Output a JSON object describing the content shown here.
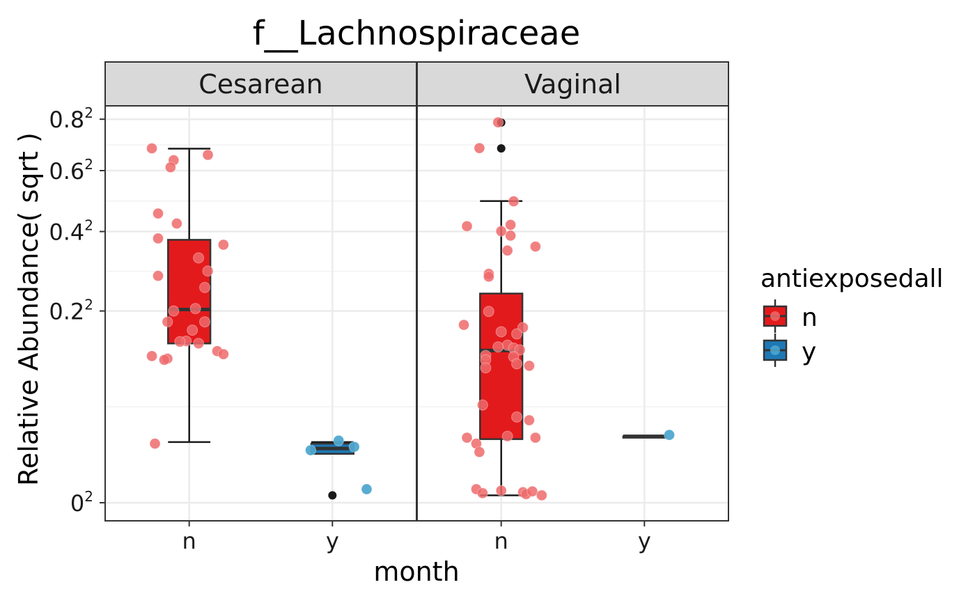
{
  "chart_data": {
    "type": "box",
    "title": "f__Lachnospiraceae",
    "xlabel": "month",
    "ylabel": "Relative Abundance( sqrt )",
    "y_scale": "sqrt",
    "ylim": [
      0,
      0.85
    ],
    "y_ticks": [
      0,
      0.2,
      0.4,
      0.6,
      0.8
    ],
    "y_tick_labels": [
      {
        "base": "0",
        "sup": "2"
      },
      {
        "base": "0.2",
        "sup": "2"
      },
      {
        "base": "0.4",
        "sup": "2"
      },
      {
        "base": "0.6",
        "sup": "2"
      },
      {
        "base": "0.8",
        "sup": "2"
      }
    ],
    "categories": [
      "n",
      "y"
    ],
    "grid": true,
    "legend": {
      "title": "antiexposedall",
      "position": "right",
      "entries": [
        {
          "label": "n",
          "fill": "#E31A1C",
          "point": "#EF6A6B"
        },
        {
          "label": "y",
          "fill": "#1F78B4",
          "point": "#4FA8D0"
        }
      ]
    },
    "colors": {
      "n_box": "#E31A1C",
      "n_point": "#EF6A6B",
      "y_point": "#4FA8D0",
      "outlier": "#1a1a1a"
    },
    "facets": [
      {
        "name": "Cesarean",
        "boxes": [
          {
            "category": "n",
            "min": 0.02,
            "q1": 0.138,
            "median": 0.203,
            "q3": 0.376,
            "max": 0.682,
            "outliers": []
          },
          {
            "category": "y",
            "min": 0.013,
            "q1": 0.013,
            "median": 0.016,
            "q3": 0.019,
            "max": 0.02,
            "outliers": [
              0.0003
            ]
          }
        ],
        "points": [
          {
            "category": "n",
            "jitter": -0.12,
            "value": 0.683
          },
          {
            "category": "n",
            "jitter": 0.06,
            "value": 0.658
          },
          {
            "category": "n",
            "jitter": -0.05,
            "value": 0.638
          },
          {
            "category": "n",
            "jitter": -0.06,
            "value": 0.612
          },
          {
            "category": "n",
            "jitter": -0.1,
            "value": 0.455
          },
          {
            "category": "n",
            "jitter": -0.04,
            "value": 0.424
          },
          {
            "category": "n",
            "jitter": -0.1,
            "value": 0.38
          },
          {
            "category": "n",
            "jitter": 0.11,
            "value": 0.362
          },
          {
            "category": "n",
            "jitter": 0.03,
            "value": 0.326
          },
          {
            "category": "n",
            "jitter": 0.06,
            "value": 0.292
          },
          {
            "category": "n",
            "jitter": -0.1,
            "value": 0.28
          },
          {
            "category": "n",
            "jitter": 0.05,
            "value": 0.252
          },
          {
            "category": "n",
            "jitter": 0.02,
            "value": 0.205
          },
          {
            "category": "n",
            "jitter": -0.05,
            "value": 0.2
          },
          {
            "category": "n",
            "jitter": -0.07,
            "value": 0.178
          },
          {
            "category": "n",
            "jitter": 0.05,
            "value": 0.178
          },
          {
            "category": "n",
            "jitter": 0.01,
            "value": 0.162
          },
          {
            "category": "n",
            "jitter": -0.01,
            "value": 0.142
          },
          {
            "category": "n",
            "jitter": -0.03,
            "value": 0.141
          },
          {
            "category": "n",
            "jitter": 0.03,
            "value": 0.138
          },
          {
            "category": "n",
            "jitter": 0.09,
            "value": 0.125
          },
          {
            "category": "n",
            "jitter": 0.11,
            "value": 0.12
          },
          {
            "category": "n",
            "jitter": -0.12,
            "value": 0.117
          },
          {
            "category": "n",
            "jitter": -0.07,
            "value": 0.113
          },
          {
            "category": "n",
            "jitter": -0.08,
            "value": 0.111
          },
          {
            "category": "n",
            "jitter": -0.11,
            "value": 0.019
          },
          {
            "category": "y",
            "jitter": -0.07,
            "value": 0.015
          },
          {
            "category": "y",
            "jitter": 0.02,
            "value": 0.021
          },
          {
            "category": "y",
            "jitter": 0.07,
            "value": 0.017
          },
          {
            "category": "y",
            "jitter": 0.11,
            "value": 0.001
          }
        ]
      },
      {
        "name": "Vaginal",
        "boxes": [
          {
            "category": "n",
            "min": 0.0003,
            "q1": 0.022,
            "median": 0.126,
            "q3": 0.238,
            "max": 0.495,
            "outliers": [
              0.786,
              0.683
            ]
          },
          {
            "category": "y",
            "min": 0.024,
            "q1": 0.024,
            "median": 0.024,
            "q3": 0.024,
            "max": 0.024,
            "outliers": []
          }
        ],
        "points": [
          {
            "category": "n",
            "jitter": -0.01,
            "value": 0.787
          },
          {
            "category": "n",
            "jitter": -0.07,
            "value": 0.684
          },
          {
            "category": "n",
            "jitter": 0.04,
            "value": 0.494
          },
          {
            "category": "n",
            "jitter": -0.11,
            "value": 0.416
          },
          {
            "category": "n",
            "jitter": 0.03,
            "value": 0.42
          },
          {
            "category": "n",
            "jitter": 0.0,
            "value": 0.401
          },
          {
            "category": "n",
            "jitter": 0.03,
            "value": 0.388
          },
          {
            "category": "n",
            "jitter": 0.11,
            "value": 0.357
          },
          {
            "category": "n",
            "jitter": 0.02,
            "value": 0.346
          },
          {
            "category": "n",
            "jitter": -0.04,
            "value": 0.285
          },
          {
            "category": "n",
            "jitter": -0.04,
            "value": 0.278
          },
          {
            "category": "n",
            "jitter": -0.04,
            "value": 0.199
          },
          {
            "category": "n",
            "jitter": -0.12,
            "value": 0.172
          },
          {
            "category": "n",
            "jitter": 0.07,
            "value": 0.167
          },
          {
            "category": "n",
            "jitter": 0.0,
            "value": 0.159
          },
          {
            "category": "n",
            "jitter": 0.05,
            "value": 0.155
          },
          {
            "category": "n",
            "jitter": 0.02,
            "value": 0.135
          },
          {
            "category": "n",
            "jitter": -0.01,
            "value": 0.132
          },
          {
            "category": "n",
            "jitter": 0.04,
            "value": 0.13
          },
          {
            "category": "n",
            "jitter": 0.06,
            "value": 0.127
          },
          {
            "category": "n",
            "jitter": -0.05,
            "value": 0.118
          },
          {
            "category": "n",
            "jitter": 0.04,
            "value": 0.116
          },
          {
            "category": "n",
            "jitter": -0.05,
            "value": 0.111
          },
          {
            "category": "n",
            "jitter": 0.05,
            "value": 0.105
          },
          {
            "category": "n",
            "jitter": 0.09,
            "value": 0.102
          },
          {
            "category": "n",
            "jitter": -0.05,
            "value": 0.099
          },
          {
            "category": "n",
            "jitter": -0.06,
            "value": 0.052
          },
          {
            "category": "n",
            "jitter": 0.05,
            "value": 0.04
          },
          {
            "category": "n",
            "jitter": 0.09,
            "value": 0.037
          },
          {
            "category": "n",
            "jitter": -0.11,
            "value": 0.023
          },
          {
            "category": "n",
            "jitter": 0.02,
            "value": 0.024
          },
          {
            "category": "n",
            "jitter": 0.11,
            "value": 0.023
          },
          {
            "category": "n",
            "jitter": -0.08,
            "value": 0.019
          },
          {
            "category": "n",
            "jitter": -0.07,
            "value": 0.014
          },
          {
            "category": "n",
            "jitter": -0.08,
            "value": 0.001
          },
          {
            "category": "n",
            "jitter": -0.06,
            "value": 0.0005
          },
          {
            "category": "n",
            "jitter": 0.0,
            "value": 0.0008
          },
          {
            "category": "n",
            "jitter": 0.07,
            "value": 0.0006
          },
          {
            "category": "n",
            "jitter": 0.08,
            "value": 0.0004
          },
          {
            "category": "n",
            "jitter": 0.1,
            "value": 0.0007
          },
          {
            "category": "n",
            "jitter": 0.13,
            "value": 0.0003
          },
          {
            "category": "y",
            "jitter": 0.08,
            "value": 0.025
          }
        ]
      }
    ]
  }
}
